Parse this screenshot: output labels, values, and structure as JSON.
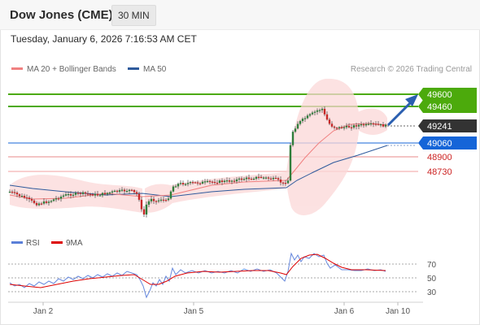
{
  "header": {
    "title": "Dow Jones (CME)",
    "timeframe": "30 MIN"
  },
  "datetime": "Tuesday, January 6, 2026 7:16:53 AM CET",
  "legend": [
    {
      "label": "MA 20 + Bollinger Bands",
      "color": "#f08080"
    },
    {
      "label": "MA 50",
      "color": "#2e5a9c"
    }
  ],
  "copyright": "Research © 2026 Trading Central",
  "levels": [
    {
      "label": "49600",
      "type": "target",
      "color": "#4caa0c"
    },
    {
      "label": "49460",
      "type": "target",
      "color": "#4caa0c"
    },
    {
      "label": "49241",
      "type": "last",
      "color": "#333333"
    },
    {
      "label": "49060",
      "type": "pivot",
      "color": "#1565d8"
    },
    {
      "label": "48900",
      "type": "support",
      "color": "#cc2222"
    },
    {
      "label": "48730",
      "type": "support",
      "color": "#cc2222"
    }
  ],
  "rsi_legend": [
    {
      "label": "RSI",
      "color": "#5a7fd8"
    },
    {
      "label": "9MA",
      "color": "#dd0000"
    }
  ],
  "rsi_axis": [
    "70",
    "50",
    "30"
  ],
  "x_axis": [
    "Jan 2",
    "Jan 5",
    "Jan 6",
    "Jan 10"
  ]
}
